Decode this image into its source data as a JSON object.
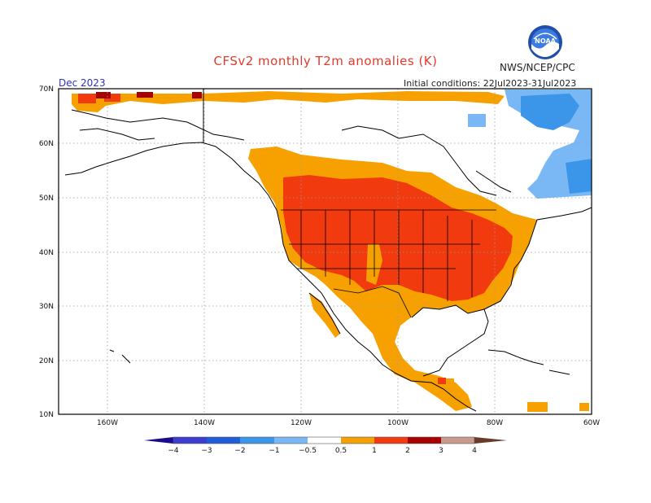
{
  "title": "CFSv2 monthly T2m anomalies (K)",
  "agency": "NWS/NCEP/CPC",
  "month": "Dec 2023",
  "initial_conditions": "Initial conditions: 22Jul2023-31Jul2023",
  "logo": {
    "icon": "noaa-logo-icon",
    "text": "NOAA"
  },
  "map": {
    "lat_ticks": [
      "70N",
      "60N",
      "50N",
      "40N",
      "30N",
      "20N",
      "10N"
    ],
    "lon_ticks": [
      "160W",
      "140W",
      "120W",
      "100W",
      "80W",
      "60W"
    ],
    "colors": {
      "ocean": "#ffffff",
      "coast": "#000000",
      "grid": "#999999"
    }
  },
  "colorbar": {
    "labels": [
      "−4",
      "−3",
      "−2",
      "−1",
      "−0.5",
      "0.5",
      "1",
      "2",
      "3",
      "4"
    ],
    "bins": [
      {
        "color": "#1c0a8c",
        "range": "< -4"
      },
      {
        "color": "#3d3dd0",
        "range": "-4 to -3"
      },
      {
        "color": "#1f5ed8",
        "range": "-3 to -2"
      },
      {
        "color": "#3b95e8",
        "range": "-2 to -1"
      },
      {
        "color": "#7ab8f5",
        "range": "-1 to -0.5"
      },
      {
        "color": "#ffffff",
        "range": "-0.5 to 0.5"
      },
      {
        "color": "#f7a100",
        "range": "0.5 to 1"
      },
      {
        "color": "#f23a0f",
        "range": "1 to 2"
      },
      {
        "color": "#a80000",
        "range": "2 to 3"
      },
      {
        "color": "#c99a8c",
        "range": "3 to 4"
      },
      {
        "color": "#6a3a2a",
        "range": "> 4"
      }
    ]
  }
}
